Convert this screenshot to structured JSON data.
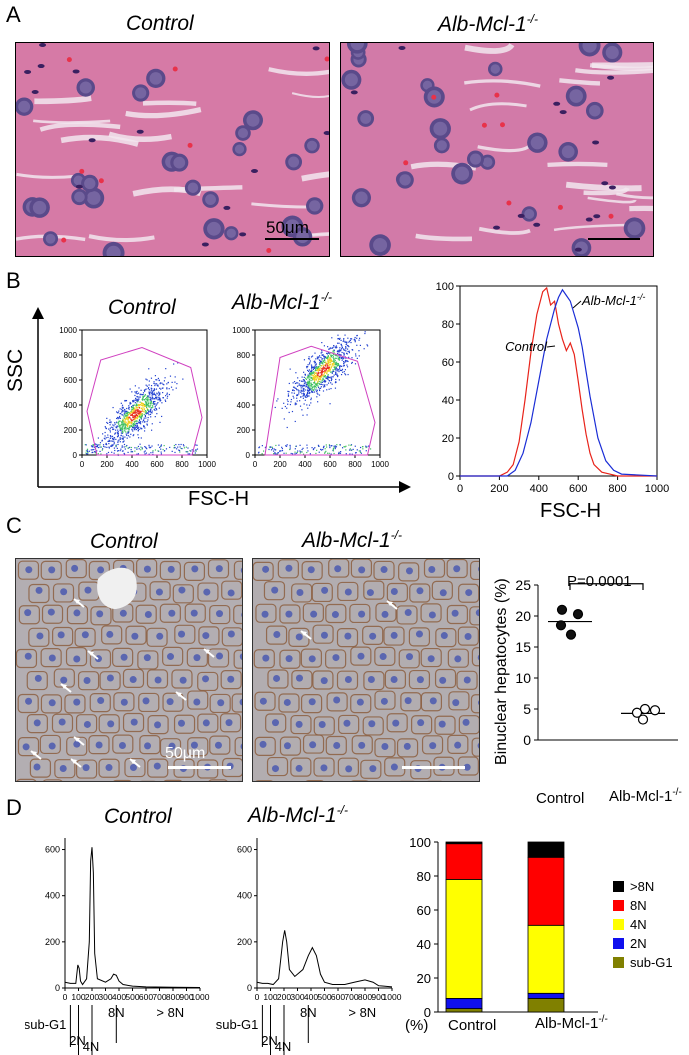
{
  "panel_a": {
    "letter": "A",
    "control_title": "Control",
    "ko_title": "Alb-Mcl-1",
    "ko_sup": "-/-",
    "scale_label": "50μm"
  },
  "panel_b": {
    "letter": "B",
    "control_title": "Control",
    "ko_title": "Alb-Mcl-1",
    "ko_sup": "-/-",
    "y_axis_label": "SSC",
    "x_axis_label": "FSC-H",
    "hist_x_label": "FSC-H",
    "hist_control_label": "Control",
    "hist_ko_label": "Alb-Mcl-1",
    "hist_ko_sup": "-/-"
  },
  "panel_c": {
    "letter": "C",
    "control_title": "Control",
    "ko_title": "Alb-Mcl-1",
    "ko_sup": "-/-",
    "scale_label": "50μm",
    "p_value": "P=0.0001",
    "y_label": "Binuclear hepatocytes (%)",
    "x_control": "Control",
    "x_ko": "Alb-Mcl-1",
    "x_ko_sup": "-/-"
  },
  "panel_d": {
    "letter": "D",
    "control_title": "Control",
    "ko_title": "Alb-Mcl-1",
    "ko_sup": "-/-",
    "peak_labels": {
      "subg1": "sub-G1",
      "n2": "2N",
      "n4": "4N",
      "n8": "8N",
      "gt8": "> 8N"
    },
    "pct_label": "(%)",
    "x_control": "Control",
    "x_ko": "Alb-Mcl-1",
    "x_ko_sup": "-/-"
  },
  "chart_data": [
    {
      "type": "scatter",
      "id": "facs-control",
      "xlim": [
        0,
        1000
      ],
      "ylim": [
        0,
        1000
      ],
      "x_ticks": [
        "0",
        "200",
        "400",
        "600",
        "800",
        "1000"
      ],
      "y_ticks": [
        "0",
        "200",
        "400",
        "600",
        "800",
        "1000"
      ],
      "gate": [
        [
          120,
          0
        ],
        [
          40,
          350
        ],
        [
          150,
          760
        ],
        [
          480,
          860
        ],
        [
          870,
          700
        ],
        [
          960,
          300
        ],
        [
          880,
          0
        ]
      ],
      "cloud_center": [
        420,
        330
      ],
      "colors": {
        "gate": "#d040c0"
      }
    },
    {
      "type": "scatter",
      "id": "facs-ko",
      "xlim": [
        0,
        1000
      ],
      "ylim": [
        0,
        1000
      ],
      "x_ticks": [
        "0",
        "200",
        "400",
        "600",
        "800",
        "1000"
      ],
      "y_ticks": [
        "0",
        "200",
        "400",
        "600",
        "800",
        "1000"
      ],
      "gate": [
        [
          80,
          0
        ],
        [
          200,
          780
        ],
        [
          450,
          870
        ],
        [
          820,
          750
        ],
        [
          960,
          260
        ],
        [
          900,
          0
        ]
      ],
      "cloud_center": [
        540,
        680
      ],
      "colors": {
        "gate": "#d040c0"
      }
    },
    {
      "type": "line",
      "id": "fsc-histogram",
      "xlim": [
        0,
        1000
      ],
      "ylim": [
        0,
        100
      ],
      "x_ticks": [
        "0",
        "200",
        "400",
        "600",
        "800",
        "1000"
      ],
      "y_ticks": [
        "0",
        "20",
        "40",
        "60",
        "80",
        "100"
      ],
      "series": [
        {
          "name": "Control",
          "color": "#e8231a",
          "x": [
            0,
            200,
            240,
            270,
            300,
            330,
            360,
            390,
            420,
            440,
            460,
            480,
            500,
            520,
            540,
            560,
            580,
            600,
            620,
            640,
            660,
            680,
            720,
            760,
            800,
            1000
          ],
          "y": [
            0,
            0,
            2,
            6,
            18,
            40,
            65,
            85,
            97,
            99,
            90,
            92,
            80,
            72,
            66,
            70,
            64,
            50,
            35,
            22,
            12,
            6,
            2,
            1,
            0,
            0
          ]
        },
        {
          "name": "Alb-Mcl-1-/-",
          "color": "#1a2dd6",
          "x": [
            0,
            240,
            280,
            320,
            360,
            400,
            440,
            460,
            480,
            500,
            520,
            540,
            560,
            580,
            600,
            620,
            640,
            660,
            700,
            740,
            780,
            820,
            1000
          ],
          "y": [
            0,
            0,
            3,
            12,
            28,
            50,
            72,
            80,
            88,
            94,
            98,
            95,
            92,
            85,
            78,
            68,
            55,
            42,
            20,
            8,
            3,
            1,
            0
          ]
        }
      ]
    },
    {
      "type": "scatter",
      "id": "binuclear",
      "title": "",
      "ylabel": "Binuclear hepatocytes (%)",
      "ylim": [
        0,
        25
      ],
      "y_ticks": [
        "0",
        "5",
        "10",
        "15",
        "20",
        "25"
      ],
      "categories": [
        "Control",
        "Alb-Mcl-1-/-"
      ],
      "series": [
        {
          "name": "Control",
          "fill": "#111",
          "values": [
            21,
            20.3,
            18.5,
            17
          ],
          "mean": 19.1
        },
        {
          "name": "Alb-Mcl-1-/-",
          "fill": "#fff",
          "values": [
            5,
            4.8,
            4.4,
            3.3
          ],
          "mean": 4.3
        }
      ]
    },
    {
      "type": "line",
      "id": "ploidy-control",
      "xlim": [
        0,
        1000
      ],
      "ylim": [
        0,
        650
      ],
      "x_ticks": [
        "0",
        "100",
        "200",
        "300",
        "400",
        "500",
        "600",
        "700",
        "800",
        "900",
        "1000"
      ],
      "y_ticks": [
        "0",
        "200",
        "400",
        "600"
      ],
      "x": [
        0,
        40,
        80,
        95,
        105,
        115,
        130,
        160,
        180,
        190,
        200,
        210,
        220,
        240,
        300,
        340,
        360,
        380,
        400,
        430,
        500,
        600,
        800,
        1000
      ],
      "y": [
        25,
        20,
        20,
        100,
        85,
        30,
        15,
        40,
        200,
        550,
        610,
        500,
        150,
        40,
        25,
        40,
        60,
        55,
        30,
        15,
        8,
        5,
        3,
        2
      ]
    },
    {
      "type": "line",
      "id": "ploidy-ko",
      "xlim": [
        0,
        1000
      ],
      "ylim": [
        0,
        650
      ],
      "x_ticks": [
        "0",
        "100",
        "200",
        "300",
        "400",
        "500",
        "600",
        "700",
        "800",
        "900",
        "1000"
      ],
      "y_ticks": [
        "0",
        "200",
        "400",
        "600"
      ],
      "x": [
        0,
        40,
        80,
        120,
        160,
        190,
        205,
        220,
        240,
        280,
        340,
        380,
        410,
        440,
        470,
        500,
        560,
        650,
        720,
        800,
        860,
        900,
        1000
      ],
      "y": [
        25,
        20,
        20,
        15,
        40,
        200,
        250,
        200,
        80,
        50,
        80,
        140,
        175,
        140,
        60,
        25,
        15,
        15,
        25,
        35,
        25,
        10,
        5
      ]
    },
    {
      "type": "bar",
      "id": "ploidy-stacked",
      "categories": [
        "Control",
        "Alb-Mcl-1-/-"
      ],
      "ylim": [
        0,
        100
      ],
      "y_ticks": [
        "0",
        "20",
        "40",
        "60",
        "80",
        "100"
      ],
      "series": [
        {
          "name": "sub-G1",
          "color": "#808000",
          "values": [
            2,
            8
          ]
        },
        {
          "name": "2N",
          "color": "#1010ee",
          "values": [
            6,
            3
          ]
        },
        {
          "name": "4N",
          "color": "#ffff00",
          "values": [
            70,
            40
          ]
        },
        {
          "name": "8N",
          "color": "#ff0000",
          "values": [
            21,
            40
          ]
        },
        {
          "name": ">8N",
          "color": "#000000",
          "values": [
            1,
            9
          ]
        }
      ],
      "legend": "right"
    }
  ]
}
